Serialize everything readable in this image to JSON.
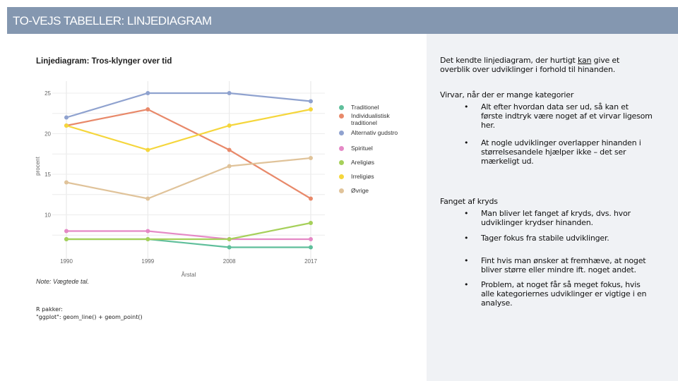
{
  "header": {
    "title": "TO-VEJS TABELLER: LINJEDIAGRAM"
  },
  "chart_data": {
    "type": "line",
    "title": "Linjediagram: Tros-klynger over tid",
    "xlabel": "Årstal",
    "ylabel": "procent",
    "x": [
      "1990",
      "1999",
      "2008",
      "2017"
    ],
    "yticks": [
      "25",
      "20",
      "15",
      "10"
    ],
    "ylim": [
      5.5,
      26.5
    ],
    "grid": true,
    "legend_position": "right",
    "series": [
      {
        "name": "Traditionel",
        "color": "#5fbf9b",
        "values": [
          7,
          7,
          6,
          6
        ]
      },
      {
        "name": "Individualistisk traditionel",
        "color": "#e8896a",
        "values": [
          21,
          23,
          18,
          12
        ]
      },
      {
        "name": "Alternativ gudstro",
        "color": "#8fa2cf",
        "values": [
          22,
          25,
          25,
          24
        ]
      },
      {
        "name": "Spirituel",
        "color": "#e589c6",
        "values": [
          8,
          8,
          7,
          7
        ]
      },
      {
        "name": "Areligiøs",
        "color": "#a6d05a",
        "values": [
          7,
          7,
          7,
          9
        ]
      },
      {
        "name": "Irreligiøs",
        "color": "#f5d63c",
        "values": [
          21,
          18,
          21,
          23
        ]
      },
      {
        "name": "Øvrige",
        "color": "#e0c39a",
        "values": [
          14,
          12,
          16,
          17
        ]
      }
    ],
    "note": "Note: Vægtede tal."
  },
  "rpkg": {
    "line1": "R pakker:",
    "line2": "\"ggplot\": geom_line() + geom_point()"
  },
  "text": {
    "intro_a": "Det kendte linjediagram, der hurtigt ",
    "intro_u": "kan",
    "intro_b": " give et",
    "intro_2": "overblik over udviklinger i forhold til hinanden.",
    "s1_head": "Virvar, når der er mange kategorier",
    "s1_b1": [
      "Alt efter hvordan data ser ud, så kan et",
      "første indtryk være noget af et virvar ligesom",
      "her."
    ],
    "s1_b2": [
      "At nogle udviklinger overlapper hinanden i",
      "størrelsesandele hjælper ikke – det ser",
      "mærkeligt ud."
    ],
    "s2_head": "Fanget af kryds",
    "s2_b1": [
      "Man bliver let fanget af kryds, dvs. hvor",
      "udviklinger krydser hinanden."
    ],
    "s2_b2": [
      "Tager fokus fra stabile udviklinger."
    ],
    "s3_b1": [
      "Fint hvis man ønsker at fremhæve, at noget",
      "bliver større eller mindre ift. noget andet."
    ],
    "s3_b2": [
      "Problem, at noget får så meget fokus, hvis",
      "alle kategoriernes udviklinger er vigtige i en",
      "analyse."
    ],
    "bullet": "•"
  }
}
